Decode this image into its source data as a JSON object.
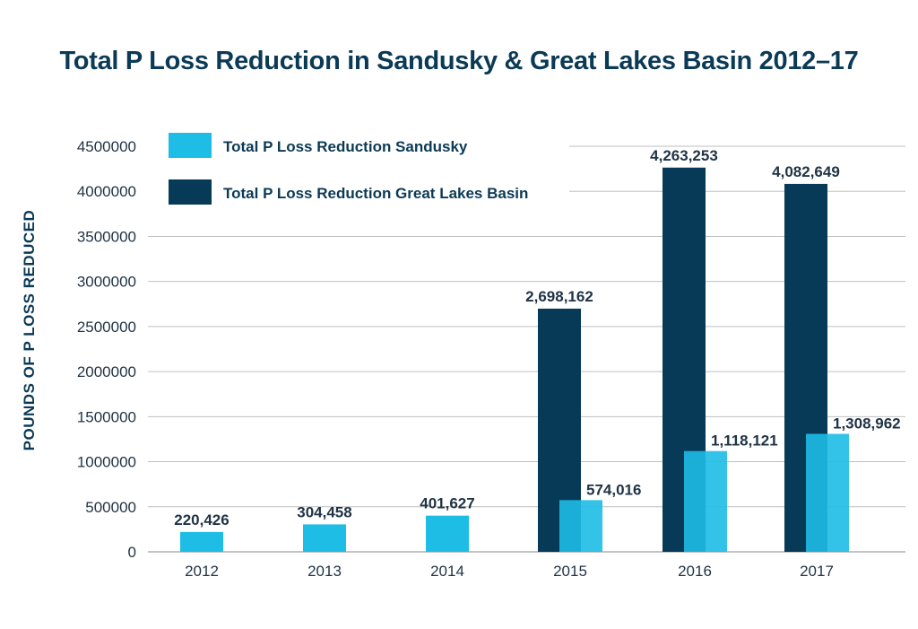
{
  "chart_data": {
    "type": "bar",
    "title": "Total P Loss Reduction in Sandusky & Great Lakes Basin 2012–17",
    "ylabel": "POUNDS OF  P  LOSS REDUCED",
    "xlabel": "",
    "categories": [
      "2012",
      "2013",
      "2014",
      "2015",
      "2016",
      "2017"
    ],
    "ylim": [
      0,
      4500000
    ],
    "yticks": [
      {
        "value": 0,
        "label": "0"
      },
      {
        "value": 500000,
        "label": "500000"
      },
      {
        "value": 1000000,
        "label": "1000000"
      },
      {
        "value": 1500000,
        "label": "1500000"
      },
      {
        "value": 2000000,
        "label": "2000000"
      },
      {
        "value": 2500000,
        "label": "2500000"
      },
      {
        "value": 3000000,
        "label": "3000000"
      },
      {
        "value": 3500000,
        "label": "3500000"
      },
      {
        "value": 4000000,
        "label": "4000000"
      },
      {
        "value": 4500000,
        "label": "4500000"
      }
    ],
    "grid": true,
    "legend_position": "top-left",
    "series": [
      {
        "name": "Total P Loss Reduction Sandusky",
        "color": "#1ebde6",
        "values": [
          220426,
          304458,
          401627,
          574016,
          1118121,
          1308962
        ],
        "labels": [
          "220,426",
          "304,458",
          "401,627",
          "574,016",
          "1,118,121",
          "1,308,962"
        ]
      },
      {
        "name": "Total P Loss Reduction Great Lakes Basin",
        "color": "#073a56",
        "values": [
          null,
          null,
          null,
          2698162,
          4263253,
          4082649
        ],
        "labels": [
          "",
          "",
          "",
          "2,698,162",
          "4,263,253",
          "4,082,649"
        ]
      }
    ]
  }
}
